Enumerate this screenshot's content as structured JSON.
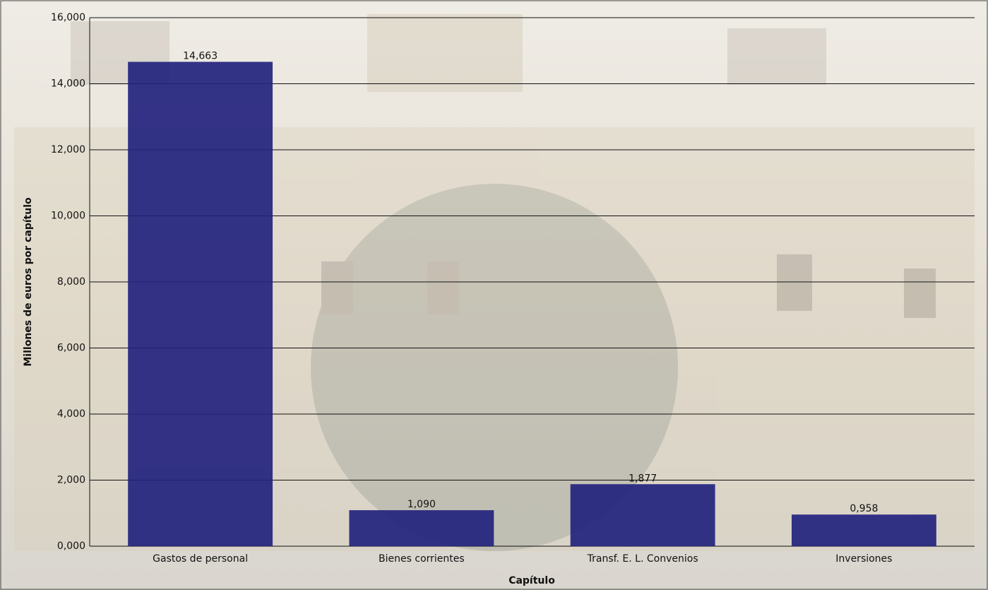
{
  "chart_data": {
    "type": "bar",
    "x_label": "Capítulo",
    "y_label": "Millones de euros por capítulo",
    "categories": [
      "Gastos de personal",
      "Bienes corrientes",
      "Transf. E. L. Convenios",
      "Inversiones"
    ],
    "values": [
      14.663,
      1.09,
      1.877,
      0.958
    ],
    "value_labels": [
      "14,663",
      "1,090",
      "1,877",
      "0,958"
    ],
    "color": "#23237e",
    "ylim": [
      0,
      16
    ],
    "yticks": [
      {
        "value": 0,
        "label": "0,000"
      },
      {
        "value": 2,
        "label": "2,000"
      },
      {
        "value": 4,
        "label": "4,000"
      },
      {
        "value": 6,
        "label": "6,000"
      },
      {
        "value": 8,
        "label": "8,000"
      },
      {
        "value": 10,
        "label": "10,000"
      },
      {
        "value": 12,
        "label": "12,000"
      },
      {
        "value": 14,
        "label": "14,000"
      },
      {
        "value": 16,
        "label": "16,000"
      }
    ],
    "grid": true
  }
}
